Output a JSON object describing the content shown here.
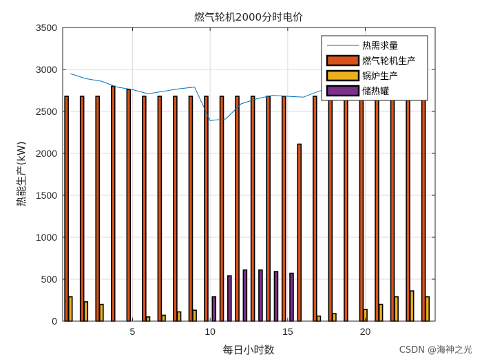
{
  "chart_data": {
    "type": "bar",
    "title": "燃气轮机2000分时电价",
    "xlabel": "每日小时数",
    "ylabel": "热能生产(kW)",
    "x": [
      1,
      2,
      3,
      4,
      5,
      6,
      7,
      8,
      9,
      10,
      11,
      12,
      13,
      14,
      15,
      16,
      17,
      18,
      19,
      20,
      21,
      22,
      23,
      24
    ],
    "xlim": [
      0.5,
      24.5
    ],
    "ylim": [
      0,
      3500
    ],
    "xticks": [
      5,
      10,
      15,
      20
    ],
    "yticks": [
      0,
      500,
      1000,
      1500,
      2000,
      2500,
      3000,
      3500
    ],
    "grid": true,
    "legend_location": "top-right",
    "series": [
      {
        "name": "燃气轮机生产",
        "kind": "bar",
        "color": "#D95319",
        "values": [
          2680,
          2680,
          2680,
          2800,
          2760,
          2680,
          2680,
          2680,
          2680,
          2680,
          2680,
          2680,
          2680,
          2680,
          2680,
          2110,
          2680,
          2680,
          2680,
          2680,
          2680,
          2680,
          2680,
          2680
        ]
      },
      {
        "name": "锅炉生产",
        "kind": "bar",
        "color": "#EDB120",
        "values": [
          290,
          230,
          200,
          0,
          0,
          50,
          70,
          110,
          130,
          0,
          0,
          0,
          0,
          0,
          0,
          0,
          60,
          90,
          0,
          140,
          200,
          290,
          360,
          290
        ]
      },
      {
        "name": "储热罐",
        "kind": "bar",
        "color": "#7E2F8E",
        "values": [
          0,
          0,
          0,
          0,
          0,
          0,
          0,
          0,
          0,
          290,
          540,
          610,
          610,
          590,
          570,
          0,
          0,
          0,
          0,
          0,
          0,
          0,
          0,
          0
        ]
      },
      {
        "name": "热需求量",
        "kind": "line",
        "color": "#0072BD",
        "values": [
          2950,
          2890,
          2860,
          2790,
          2760,
          2710,
          2740,
          2770,
          2790,
          2390,
          2410,
          2590,
          2650,
          2690,
          2680,
          2670,
          2740,
          2790,
          2800,
          2810,
          2840,
          2860,
          2880,
          2910
        ]
      }
    ]
  },
  "watermark": "CSDN @海神之光"
}
